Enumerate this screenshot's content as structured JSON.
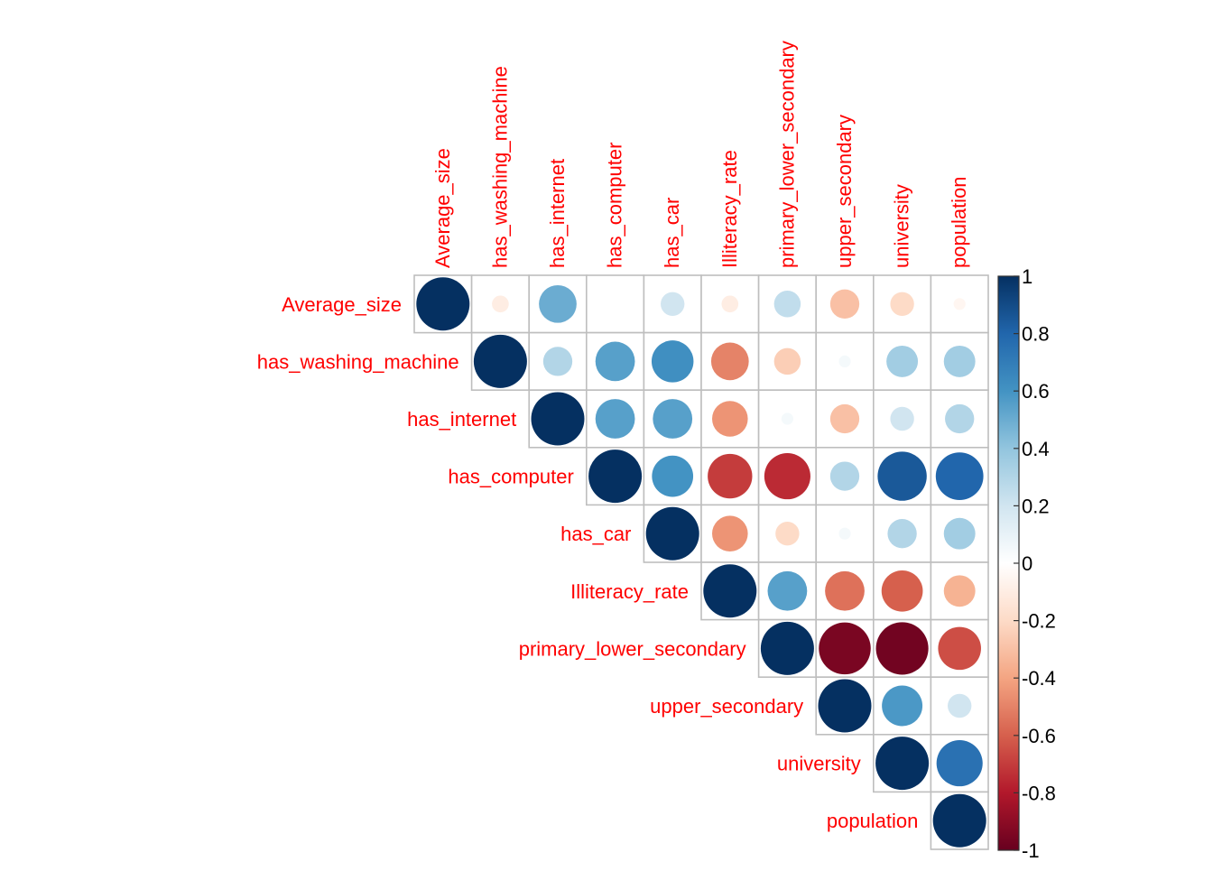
{
  "chart_data": {
    "type": "heatmap",
    "subtype": "correlation-matrix-upper-triangle-circles",
    "variables": [
      "Average_size",
      "has_washing_machine",
      "has_internet",
      "has_computer",
      "has_car",
      "Illiteracy_rate",
      "primary_lower_secondary",
      "upper_secondary",
      "university",
      "population"
    ],
    "label_color": "#FF0000",
    "matrix": [
      [
        1.0,
        -0.1,
        0.5,
        0.0,
        0.2,
        -0.1,
        0.25,
        -0.3,
        -0.2,
        -0.05
      ],
      [
        -0.1,
        1.0,
        0.3,
        0.55,
        0.62,
        -0.5,
        -0.25,
        0.05,
        0.35,
        0.35
      ],
      [
        0.5,
        0.3,
        1.0,
        0.55,
        0.55,
        -0.45,
        0.05,
        -0.3,
        0.2,
        0.3
      ],
      [
        0.0,
        0.55,
        0.55,
        1.0,
        0.6,
        -0.7,
        -0.75,
        0.3,
        0.85,
        0.8
      ],
      [
        0.2,
        0.62,
        0.55,
        0.6,
        1.0,
        -0.45,
        -0.2,
        0.05,
        0.3,
        0.35
      ],
      [
        -0.1,
        -0.5,
        -0.45,
        -0.7,
        -0.45,
        1.0,
        0.55,
        -0.55,
        -0.6,
        -0.35
      ],
      [
        0.25,
        -0.25,
        0.05,
        -0.75,
        -0.2,
        0.55,
        1.0,
        -0.95,
        -0.97,
        -0.65
      ],
      [
        -0.3,
        0.05,
        -0.3,
        0.3,
        0.05,
        -0.55,
        -0.95,
        1.0,
        0.58,
        0.2
      ],
      [
        -0.2,
        0.35,
        0.2,
        0.85,
        0.3,
        -0.6,
        -0.97,
        0.58,
        1.0,
        0.75
      ],
      [
        -0.05,
        0.35,
        0.3,
        0.8,
        0.35,
        -0.35,
        -0.65,
        0.2,
        0.75,
        1.0
      ]
    ],
    "value_range": [
      -1,
      1
    ],
    "colorbar": {
      "ticks": [
        "1",
        "0.8",
        "0.6",
        "0.4",
        "0.2",
        "0",
        "-0.2",
        "-0.4",
        "-0.6",
        "-0.8",
        "-1"
      ],
      "colors": [
        "#053061",
        "#2166AC",
        "#4393C3",
        "#92C5DE",
        "#D1E5F0",
        "#FFFFFF",
        "#FDDBC7",
        "#F4A582",
        "#D6604D",
        "#B2182B",
        "#67001F"
      ]
    },
    "grid": true,
    "legend_position": "right"
  }
}
